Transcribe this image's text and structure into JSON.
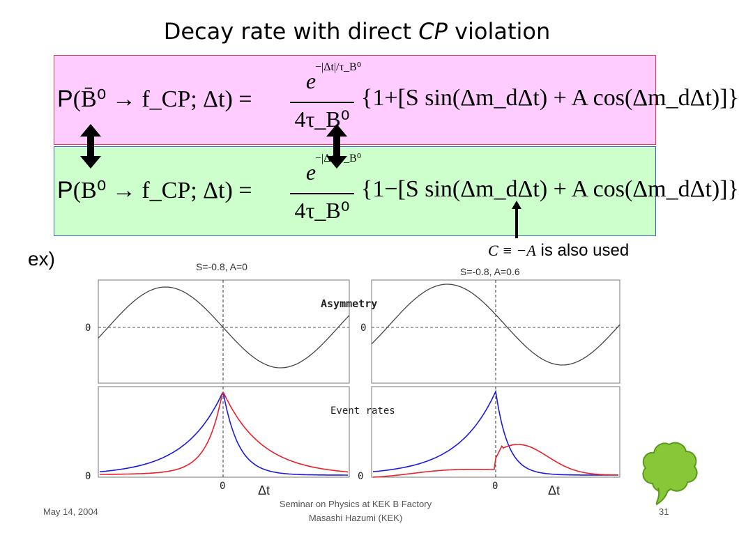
{
  "title": {
    "text": "Decay rate with direct ",
    "italic": "CP",
    "suffix": " violation"
  },
  "equations": {
    "bbar": {
      "p": "P",
      "lhs": "(B̄⁰ → f_CP; Δt) =",
      "num": "e",
      "exponent": "−|Δt|/τ_B⁰",
      "den": "4τ_B⁰",
      "rhs": "{1+[S sin(Δm_dΔt) + A cos(Δm_dΔt)]}"
    },
    "b": {
      "p": "P",
      "lhs": "(B⁰ → f_CP; Δt) =",
      "num": "e",
      "exponent": "−|Δt|/τ_B⁰",
      "den": "4τ_B⁰",
      "rhs": "{1−[S sin(Δm_dΔt) + A cos(Δm_dΔt)]}"
    }
  },
  "ex_label": "ex)",
  "note": {
    "symbol": "C ≡ −A",
    "text": " is also used"
  },
  "plots": {
    "left_title": "S=-0.8, A=0",
    "right_title": "S=-0.8, A=0.6",
    "asymmetry_label": "Asymmetry",
    "event_rates_label": "Event rates",
    "zero_label": "0",
    "x_axis_label": "Δt"
  },
  "footer": {
    "date": "May 14, 2004",
    "center_line1": "Seminar on Physics at KEK B Factory",
    "center_line2": "Masashi Hazumi (KEK)",
    "page": "31"
  },
  "colors": {
    "blue": "#1a1adf",
    "red": "#e8202a",
    "pink_box": "#ffccff",
    "green_box": "#ccffcc"
  },
  "icon": "tree-icon"
}
